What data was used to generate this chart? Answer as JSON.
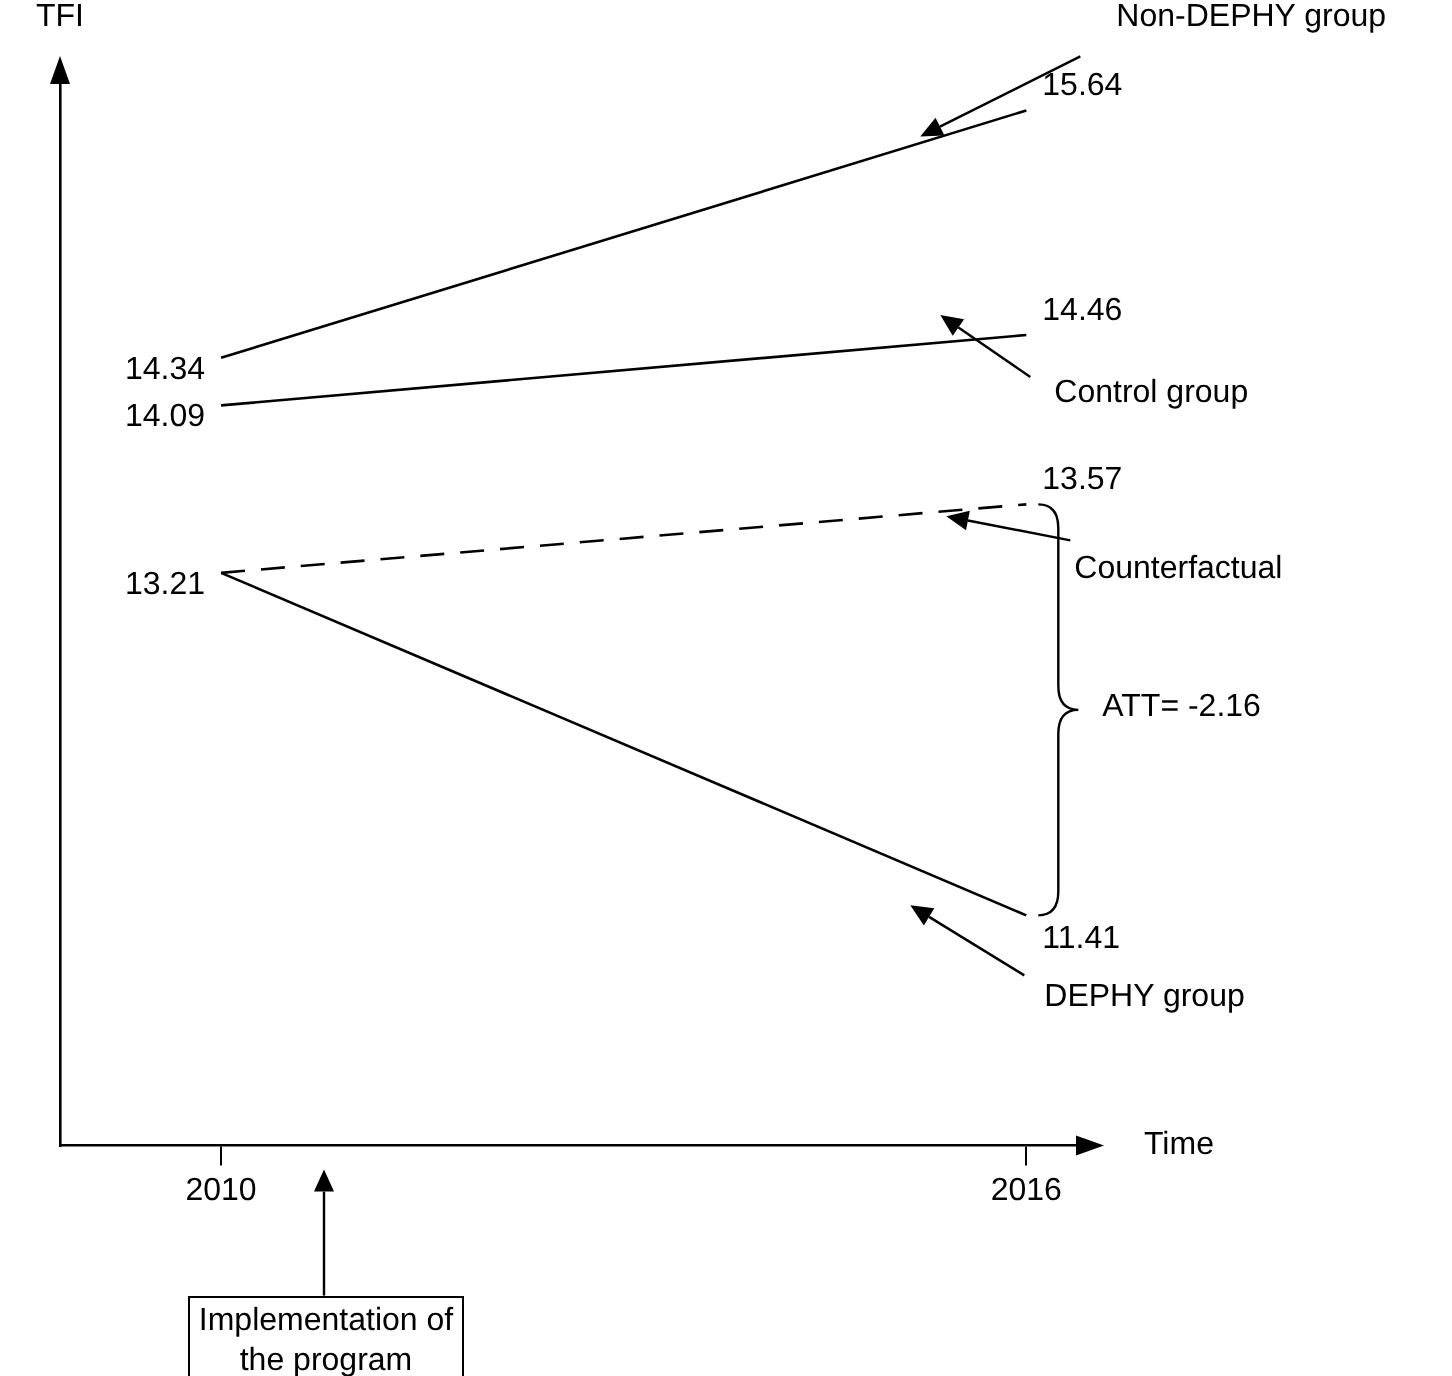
{
  "chart_data": {
    "type": "line",
    "xlabel": "Time",
    "ylabel": "TFI",
    "x": [
      2010,
      2016
    ],
    "xlim": [
      2008.8,
      2016.4
    ],
    "xticks": [
      2010,
      2016
    ],
    "ylim": [
      10.2,
      15.8
    ],
    "tick_labels": "x",
    "legend": false,
    "grid": false,
    "marker": "none",
    "series": [
      {
        "name": "Non-DEPHY group",
        "color": "#000000",
        "line_style": "solid",
        "values": [
          14.34,
          15.64
        ],
        "value_labels": [
          "14.34",
          "15.64"
        ]
      },
      {
        "name": "Control group",
        "color": "#000000",
        "line_style": "solid",
        "values": [
          14.09,
          14.46
        ],
        "value_labels": [
          "14.09",
          "14.46"
        ]
      },
      {
        "name": "Counterfactual",
        "color": "#000000",
        "line_style": "dashed",
        "values": [
          13.21,
          13.57
        ],
        "value_labels": [
          null,
          "13.57"
        ]
      },
      {
        "name": "DEPHY group",
        "color": "#000000",
        "line_style": "solid",
        "values": [
          13.21,
          11.41
        ],
        "value_labels": [
          "13.21",
          "11.41"
        ]
      }
    ],
    "annotations": [
      "ATT= -2.16",
      "Implementation of the program"
    ]
  }
}
